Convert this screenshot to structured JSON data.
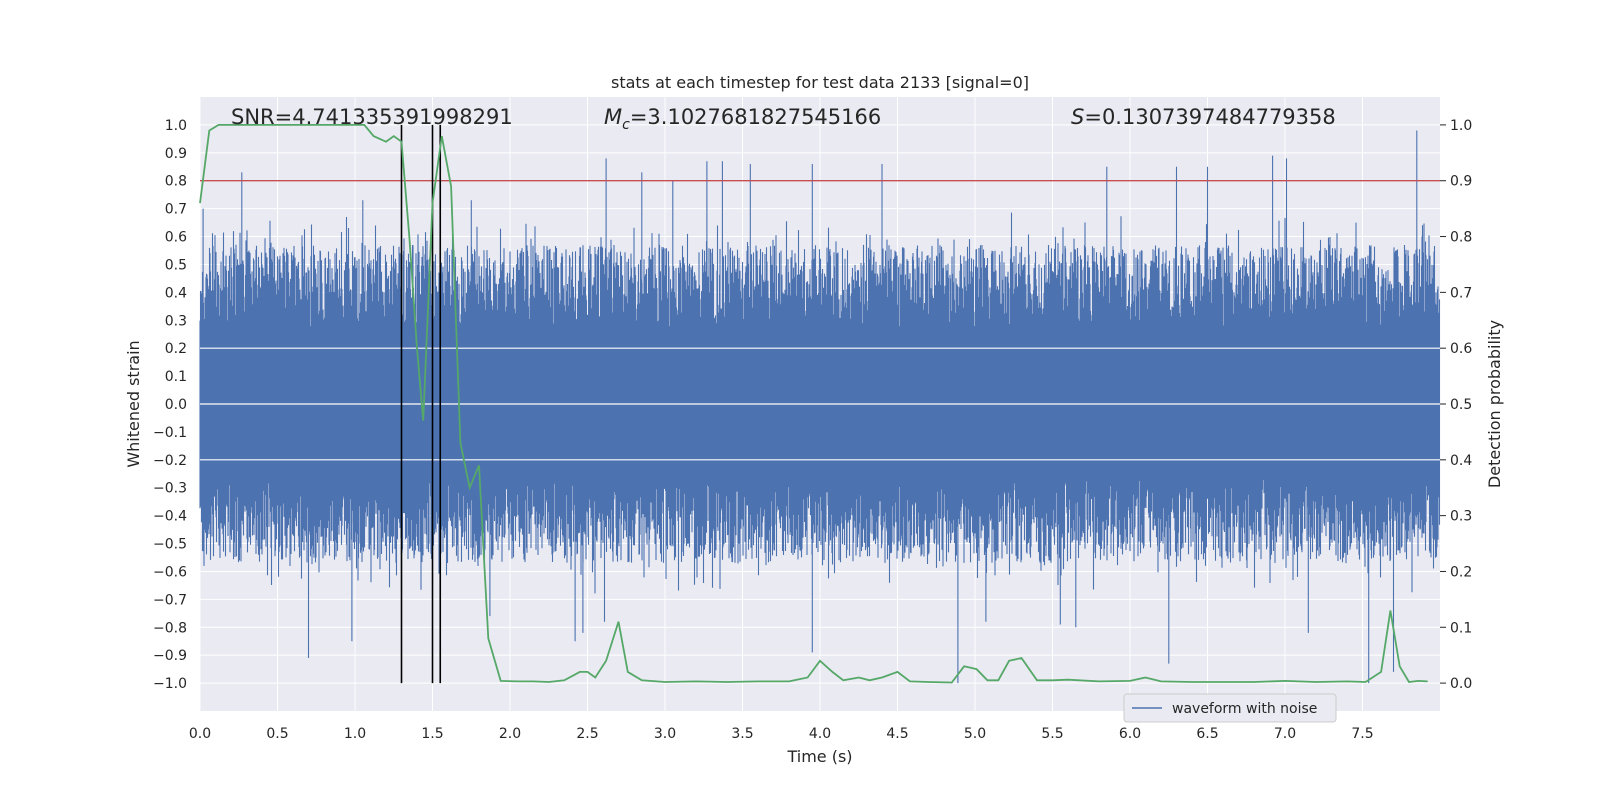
{
  "chart_data": {
    "type": "line",
    "title": "stats at each timestep for test data 2133 [signal=0]",
    "xlabel": "Time (s)",
    "ylabel": "Whitened strain",
    "y2label": "Detection probability",
    "xlim": [
      0.0,
      8.0
    ],
    "ylim": [
      -1.1,
      1.1
    ],
    "y2lim": [
      -0.05,
      1.05
    ],
    "xticks": [
      0.0,
      0.5,
      1.0,
      1.5,
      2.0,
      2.5,
      3.0,
      3.5,
      4.0,
      4.5,
      5.0,
      5.5,
      6.0,
      6.5,
      7.0,
      7.5
    ],
    "xtick_labels": [
      "0.0",
      "0.5",
      "1.0",
      "1.5",
      "2.0",
      "2.5",
      "3.0",
      "3.5",
      "4.0",
      "4.5",
      "5.0",
      "5.5",
      "6.0",
      "6.5",
      "7.0",
      "7.5"
    ],
    "yticks": [
      1.0,
      0.9,
      0.8,
      0.7,
      0.6,
      0.5,
      0.4,
      0.3,
      0.2,
      0.1,
      0.0,
      -0.1,
      -0.2,
      -0.3,
      -0.4,
      -0.5,
      -0.6,
      -0.7,
      -0.8,
      -0.9,
      -1.0
    ],
    "ytick_labels": [
      "1.0",
      "0.9",
      "0.8",
      "0.7",
      "0.6",
      "0.5",
      "0.4",
      "0.3",
      "0.2",
      "0.1",
      "0.0",
      "−0.1",
      "−0.2",
      "−0.3",
      "−0.4",
      "−0.5",
      "−0.6",
      "−0.7",
      "−0.8",
      "−0.9",
      "−1.0"
    ],
    "y2ticks": [
      1.0,
      0.9,
      0.8,
      0.7,
      0.6,
      0.5,
      0.4,
      0.3,
      0.2,
      0.1,
      0.0
    ],
    "y2tick_labels": [
      "1.0",
      "0.9",
      "0.8",
      "0.7",
      "0.6",
      "0.5",
      "0.4",
      "0.3",
      "0.2",
      "0.1",
      "0.0"
    ],
    "grid": true,
    "annotations": {
      "snr": "SNR=4.741335391998291",
      "mc_symbol": "M",
      "mc_sub": "c",
      "mc_value": "=3.1027681827545166",
      "s_symbol": "S",
      "s_value": "=0.1307397484779358"
    },
    "threshold_probability": 0.9,
    "vertical_lines_x": [
      1.3,
      1.5,
      1.55
    ],
    "waveform": {
      "name": "waveform with noise",
      "color": "#4c72b0",
      "core_amplitude": 0.27,
      "peaks_up": [
        [
          0.02,
          0.7
        ],
        [
          0.27,
          0.83
        ],
        [
          1.05,
          0.73
        ],
        [
          1.55,
          0.96
        ],
        [
          1.75,
          0.73
        ],
        [
          2.62,
          0.88
        ],
        [
          2.85,
          0.83
        ],
        [
          3.05,
          0.8
        ],
        [
          3.27,
          0.87
        ],
        [
          3.37,
          0.87
        ],
        [
          3.55,
          0.86
        ],
        [
          3.95,
          0.86
        ],
        [
          4.4,
          0.86
        ],
        [
          5.85,
          0.85
        ],
        [
          6.3,
          0.85
        ],
        [
          6.5,
          0.85
        ],
        [
          6.92,
          0.89
        ],
        [
          7.01,
          0.88
        ],
        [
          7.85,
          0.98
        ]
      ],
      "peaks_down": [
        [
          0.7,
          -0.91
        ],
        [
          0.98,
          -0.85
        ],
        [
          1.3,
          -0.67
        ],
        [
          1.5,
          -0.65
        ],
        [
          1.87,
          -0.76
        ],
        [
          2.42,
          -0.85
        ],
        [
          2.47,
          -0.82
        ],
        [
          2.61,
          -0.78
        ],
        [
          3.95,
          -0.89
        ],
        [
          4.89,
          -1.0
        ],
        [
          5.07,
          -0.78
        ],
        [
          5.55,
          -0.79
        ],
        [
          5.65,
          -0.8
        ],
        [
          6.25,
          -0.93
        ],
        [
          7.15,
          -0.82
        ],
        [
          7.54,
          -1.0
        ],
        [
          7.7,
          -0.96
        ]
      ]
    },
    "probability": {
      "color": "#55a868",
      "x": [
        0.0,
        0.06,
        0.12,
        0.2,
        0.3,
        0.5,
        0.7,
        0.9,
        1.0,
        1.06,
        1.12,
        1.2,
        1.25,
        1.3,
        1.35,
        1.4,
        1.44,
        1.5,
        1.56,
        1.62,
        1.68,
        1.74,
        1.8,
        1.86,
        1.94,
        2.05,
        2.15,
        2.25,
        2.35,
        2.45,
        2.5,
        2.55,
        2.62,
        2.7,
        2.76,
        2.85,
        3.0,
        3.2,
        3.4,
        3.6,
        3.8,
        3.92,
        4.0,
        4.08,
        4.15,
        4.25,
        4.32,
        4.4,
        4.5,
        4.58,
        4.7,
        4.85,
        4.93,
        5.01,
        5.08,
        5.15,
        5.22,
        5.3,
        5.4,
        5.5,
        5.6,
        5.8,
        6.0,
        6.1,
        6.2,
        6.4,
        6.6,
        6.8,
        7.0,
        7.2,
        7.4,
        7.52,
        7.62,
        7.68,
        7.74,
        7.8,
        7.86,
        7.92
      ],
      "y": [
        0.86,
        0.99,
        1.0,
        1.0,
        1.0,
        1.0,
        1.0,
        1.0,
        1.0,
        1.0,
        0.98,
        0.97,
        0.98,
        0.97,
        0.8,
        0.6,
        0.47,
        0.86,
        0.98,
        0.89,
        0.43,
        0.35,
        0.39,
        0.08,
        0.004,
        0.003,
        0.003,
        0.002,
        0.005,
        0.02,
        0.02,
        0.01,
        0.04,
        0.11,
        0.02,
        0.005,
        0.002,
        0.003,
        0.002,
        0.003,
        0.003,
        0.01,
        0.04,
        0.02,
        0.005,
        0.01,
        0.005,
        0.01,
        0.02,
        0.003,
        0.002,
        0.001,
        0.03,
        0.025,
        0.005,
        0.005,
        0.04,
        0.045,
        0.005,
        0.005,
        0.006,
        0.003,
        0.004,
        0.01,
        0.003,
        0.002,
        0.002,
        0.002,
        0.004,
        0.002,
        0.003,
        0.002,
        0.02,
        0.13,
        0.03,
        0.002,
        0.004,
        0.003
      ]
    },
    "legend": {
      "label": "waveform with noise",
      "location": "lower-right"
    }
  }
}
